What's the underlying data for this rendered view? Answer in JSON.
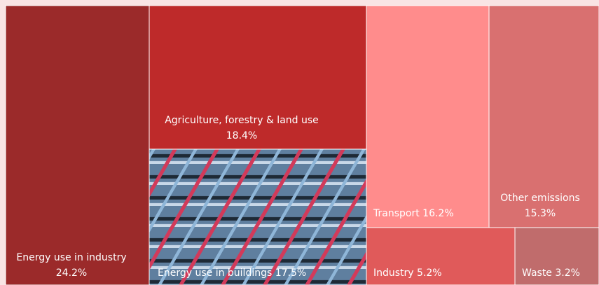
{
  "chart_data": {
    "type": "treemap",
    "categories": [
      "Energy use in industry",
      "Agriculture, forestry & land use",
      "Energy use in buildings",
      "Transport",
      "Other emissions",
      "Industry",
      "Waste"
    ],
    "values": [
      24.2,
      18.4,
      17.5,
      16.2,
      15.3,
      5.2,
      3.2
    ],
    "value_labels": [
      "24.2%",
      "18.4%",
      "17.5%",
      "16.2%",
      "15.3%",
      "5.2%",
      "3.2%"
    ],
    "colors": [
      "#9b2a2a",
      "#be2a2a",
      "#5f7f9f",
      "#ff8c8c",
      "#d97070",
      "#e05a5a",
      "#c06c6c"
    ]
  }
}
